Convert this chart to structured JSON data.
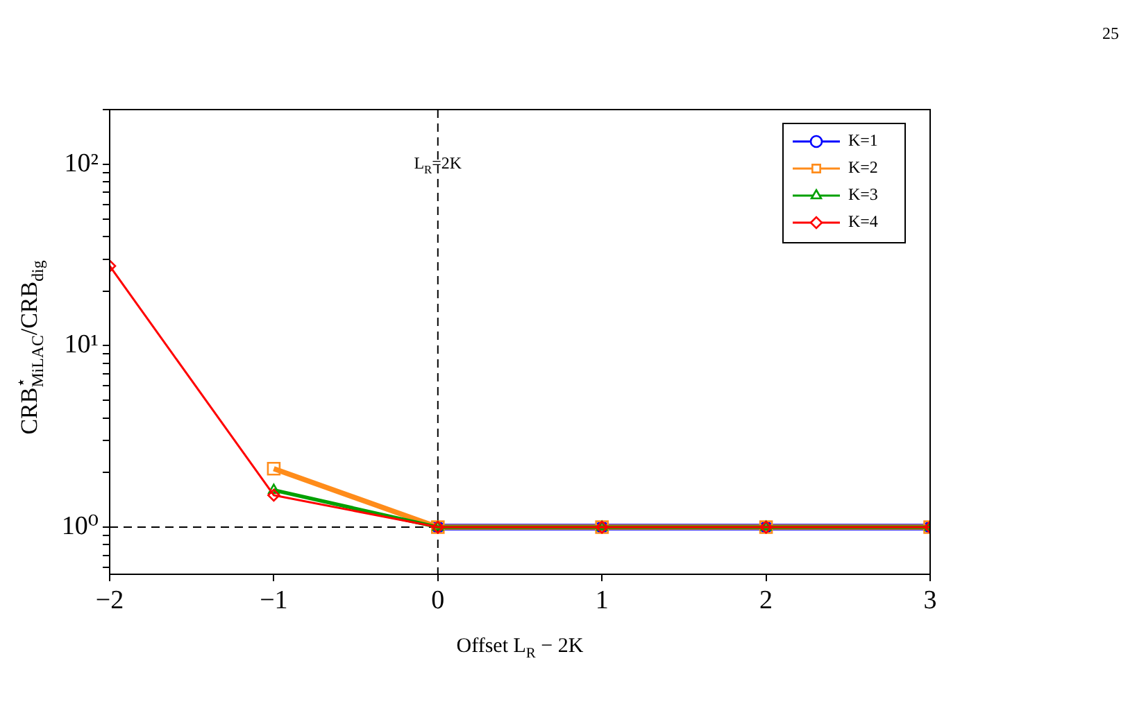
{
  "chart_data": {
    "type": "line",
    "xlabel": "Offset L$_{R}$ − 2K",
    "ylabel": "CRB$^{⋆}$$_{MiLAC}$/CRB$_{dig}$",
    "x": [
      -2,
      -1,
      0,
      1,
      2,
      3
    ],
    "series": [
      {
        "name": "K=1",
        "color": "#0000ff",
        "marker": "circle",
        "values": [
          null,
          null,
          1,
          1,
          1,
          1
        ]
      },
      {
        "name": "K=2",
        "color": "#ff8c1a",
        "marker": "square",
        "values": [
          null,
          2.1,
          1,
          1,
          1,
          1
        ]
      },
      {
        "name": "K=3",
        "color": "#00a000",
        "marker": "triangle",
        "values": [
          null,
          1.6,
          1,
          1,
          1,
          1
        ]
      },
      {
        "name": "K=4",
        "color": "#ff0000",
        "marker": "diamond",
        "values": [
          27.5,
          1.5,
          1,
          1,
          1,
          1
        ]
      }
    ],
    "log": "y",
    "xlim": [
      -2,
      3
    ],
    "xticks": [
      -2,
      -1,
      0,
      1,
      2,
      3
    ],
    "ylim": [
      0.55,
      200
    ],
    "yticks": [
      {
        "value": 0.6,
        "label": null
      },
      {
        "value": 0.7,
        "label": null
      },
      {
        "value": 0.8,
        "label": null
      },
      {
        "value": 0.9,
        "label": null
      },
      {
        "value": 1,
        "label": "10⁰"
      },
      {
        "value": 2,
        "label": null
      },
      {
        "value": 3,
        "label": null
      },
      {
        "value": 4,
        "label": null
      },
      {
        "value": 5,
        "label": null
      },
      {
        "value": 6,
        "label": null
      },
      {
        "value": 7,
        "label": null
      },
      {
        "value": 8,
        "label": null
      },
      {
        "value": 9,
        "label": null
      },
      {
        "value": 10,
        "label": "10¹"
      },
      {
        "value": 20,
        "label": null
      },
      {
        "value": 30,
        "label": null
      },
      {
        "value": 40,
        "label": null
      },
      {
        "value": 50,
        "label": null
      },
      {
        "value": 60,
        "label": null
      },
      {
        "value": 70,
        "label": null
      },
      {
        "value": 80,
        "label": null
      },
      {
        "value": 90,
        "label": null
      },
      {
        "value": 100,
        "label": "10²"
      },
      {
        "value": 200,
        "label": null
      }
    ],
    "grid": false,
    "legend": "top right",
    "line_style": "solid",
    "ref_lines": [
      {
        "axis": "x",
        "value": 0,
        "label": null,
        "color": "#000000",
        "line_style": "dashed"
      },
      {
        "axis": "y",
        "value": 1,
        "label": null,
        "color": "#000000",
        "line_style": "dashed"
      }
    ],
    "annotations": [
      {
        "text": "L$_{R}$=2K",
        "x": 0,
        "y": 100
      },
      "25"
    ]
  }
}
